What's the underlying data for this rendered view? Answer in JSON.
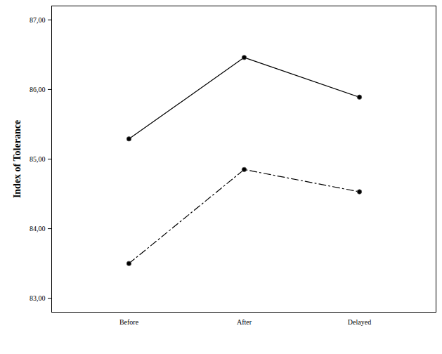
{
  "chart_data": {
    "type": "line",
    "y_label": "Index of Tolerance",
    "categories": [
      "Before",
      "After",
      "Delayed"
    ],
    "series": [
      {
        "color": "#000000",
        "marker": "circle",
        "line_style": "solid",
        "values": [
          85.29,
          86.46,
          85.89
        ]
      },
      {
        "color": "#000000",
        "marker": "circle",
        "line_style": "dashdot",
        "values": [
          83.5,
          84.85,
          84.53
        ]
      }
    ],
    "ylim": [
      82.8,
      87.2
    ],
    "yticks": [
      {
        "value": 83,
        "label": "83,00"
      },
      {
        "value": 84,
        "label": "84,00"
      },
      {
        "value": 85,
        "label": "85,00"
      },
      {
        "value": 86,
        "label": "86,00"
      },
      {
        "value": 87,
        "label": "87,00"
      }
    ],
    "grid": false,
    "data_labels": false
  }
}
